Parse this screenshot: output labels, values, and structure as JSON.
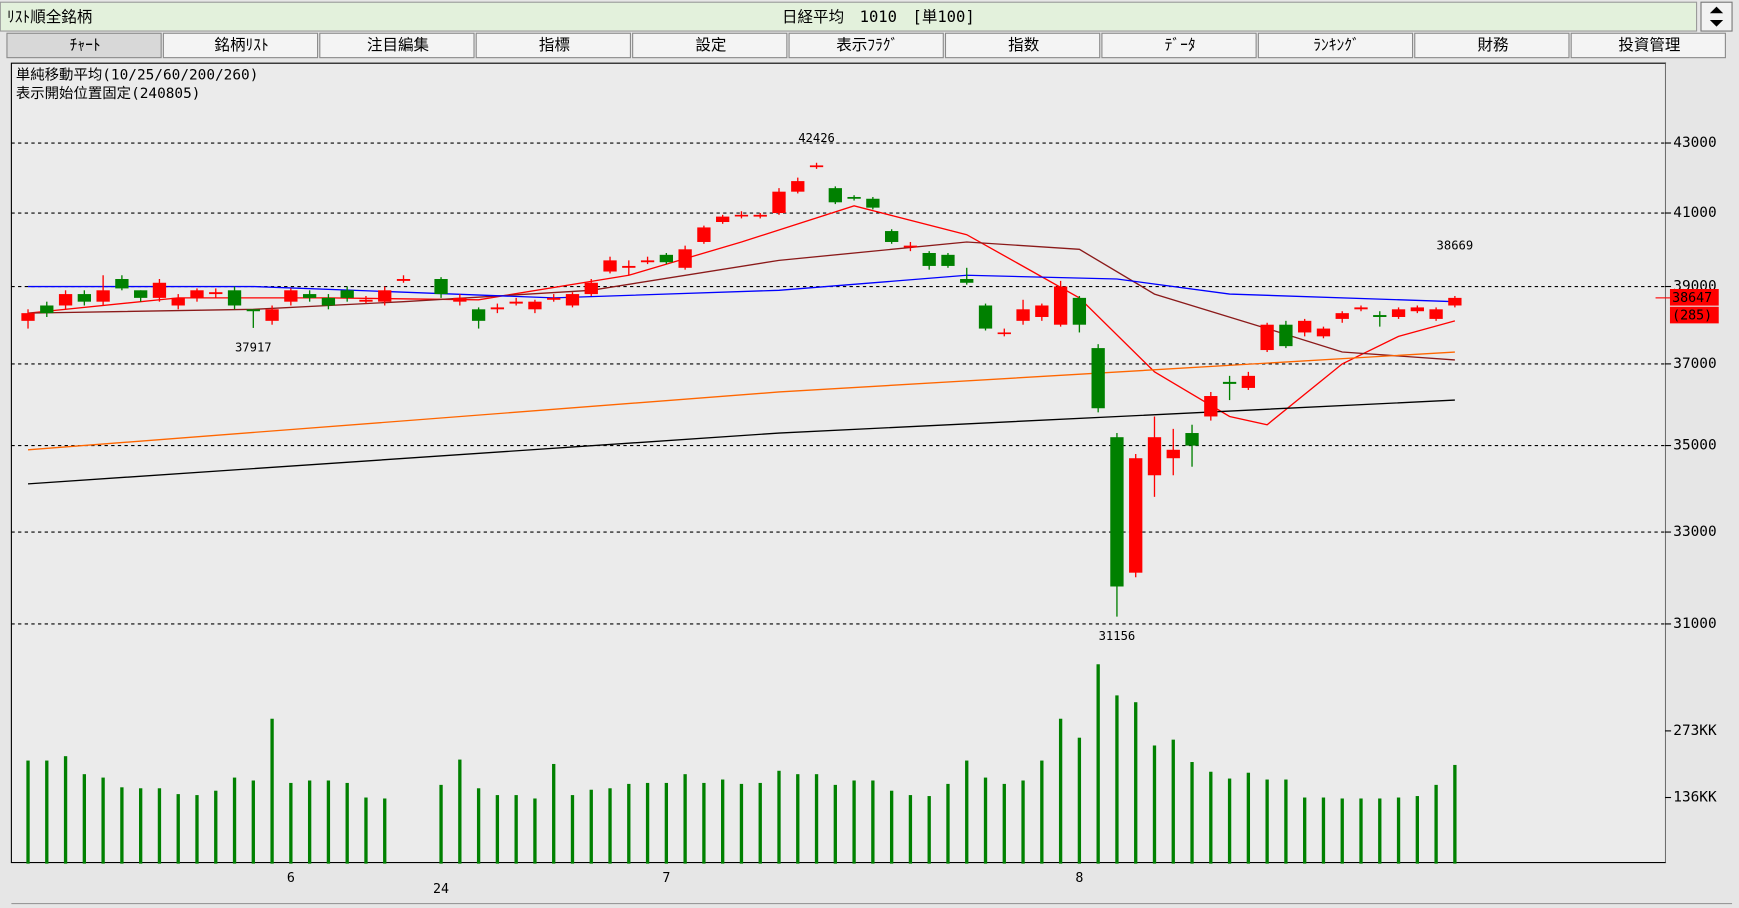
{
  "header": {
    "list_title": "ﾘｽﾄ順全銘柄",
    "instrument": "日経平均　1010　[単100]"
  },
  "tabs": [
    "ﾁｬｰﾄ",
    "銘柄ﾘｽﾄ",
    "注目編集",
    "指標",
    "設定",
    "表示ﾌﾗｸﾞ",
    "指数",
    "ﾃﾞｰﾀ",
    "ﾗﾝｷﾝｸﾞ",
    "財務",
    "投資管理"
  ],
  "chart_data": {
    "type": "candlestick",
    "info_lines": [
      "単純移動平均(10/25/60/200/260)",
      "表示開始位置固定(240805)"
    ],
    "log_scale": true,
    "ylim": [
      30600,
      45400
    ],
    "yticks": [
      31000,
      33000,
      35000,
      37000,
      39000,
      41000,
      43000
    ],
    "grid": true,
    "up_color": "#ff0000",
    "down_color": "#008000",
    "open": [
      38100,
      38500,
      38500,
      38800,
      38600,
      39200,
      38900,
      38700,
      38500,
      38700,
      38800,
      38900,
      38400,
      38100,
      38600,
      38800,
      38700,
      38900,
      38600,
      38600,
      39150,
      null,
      39200,
      38600,
      38400,
      38400,
      38550,
      38400,
      38650,
      38500,
      38800,
      39400,
      39500,
      39650,
      39850,
      39500,
      40200,
      40750,
      40950,
      40900,
      41000,
      41600,
      42300,
      41700,
      41450,
      41400,
      40500,
      40050,
      39900,
      39850,
      39200,
      38500,
      37800,
      38100,
      38200,
      38000,
      38700,
      37400,
      35200,
      32100,
      34300,
      34700,
      35300,
      35700,
      36550,
      36400,
      37350,
      38000,
      37800,
      37700,
      38150,
      38400,
      38250,
      38200,
      38350,
      38150,
      38500
    ],
    "high": [
      38400,
      38600,
      38900,
      38900,
      39300,
      39300,
      38900,
      39200,
      38800,
      38950,
      38950,
      39000,
      38400,
      38500,
      38950,
      38900,
      38800,
      39000,
      38750,
      39000,
      39300,
      null,
      39250,
      38800,
      38450,
      38550,
      38700,
      38650,
      38800,
      38850,
      39200,
      39800,
      39700,
      39800,
      39900,
      40100,
      40650,
      40950,
      41050,
      41000,
      41700,
      42000,
      42426,
      41750,
      41500,
      41450,
      40550,
      40200,
      39950,
      39900,
      39500,
      38550,
      37900,
      38650,
      38550,
      39150,
      38750,
      37500,
      35300,
      34800,
      35700,
      35400,
      35500,
      36300,
      36700,
      36800,
      38050,
      38100,
      38150,
      37950,
      38350,
      38500,
      38350,
      38450,
      38500,
      38450,
      38750
    ],
    "low": [
      37900,
      38200,
      38400,
      38500,
      38500,
      38900,
      38600,
      38600,
      38400,
      38600,
      38700,
      38400,
      37917,
      38000,
      38500,
      38600,
      38400,
      38600,
      38550,
      38500,
      39100,
      null,
      38700,
      38500,
      37900,
      38300,
      38500,
      38300,
      38600,
      38450,
      38750,
      39350,
      39300,
      39600,
      39600,
      39450,
      40150,
      40700,
      40850,
      40850,
      40950,
      41550,
      42250,
      41250,
      41350,
      41100,
      40150,
      39950,
      39450,
      39500,
      39050,
      37850,
      37700,
      38000,
      38100,
      37950,
      37800,
      35800,
      31156,
      32000,
      33800,
      34300,
      34500,
      35600,
      36100,
      36350,
      37300,
      37400,
      37700,
      37650,
      38050,
      38350,
      37950,
      38150,
      38300,
      38100,
      38450
    ],
    "close": [
      38300,
      38300,
      38800,
      38600,
      38900,
      38950,
      38700,
      39100,
      38700,
      38900,
      38850,
      38500,
      38350,
      38400,
      38900,
      38700,
      38500,
      38700,
      38650,
      38900,
      39200,
      null,
      38800,
      38700,
      38100,
      38450,
      38600,
      38600,
      38700,
      38800,
      39100,
      39700,
      39550,
      39700,
      39650,
      40000,
      40600,
      40900,
      40950,
      40950,
      41600,
      41900,
      42350,
      41300,
      41400,
      41150,
      40200,
      40100,
      39550,
      39550,
      39100,
      37900,
      37800,
      38400,
      38500,
      39000,
      38000,
      35900,
      31800,
      34700,
      35200,
      34900,
      35000,
      36200,
      36500,
      36700,
      38000,
      37450,
      38100,
      37900,
      38300,
      38450,
      38200,
      38400,
      38450,
      38400,
      38700
    ],
    "moving_averages": [
      {
        "name": "10",
        "color": "#ff0000",
        "x": [
          0,
          8,
          16,
          24,
          32,
          38,
          44,
          50,
          56,
          60,
          64,
          66,
          70,
          73,
          76
        ],
        "values": [
          38300,
          38700,
          38700,
          38650,
          39300,
          40200,
          41200,
          40400,
          38700,
          36800,
          35700,
          35500,
          37000,
          37700,
          38100
        ]
      },
      {
        "name": "25",
        "color": "#8b1a1a",
        "x": [
          0,
          12,
          20,
          30,
          40,
          50,
          56,
          60,
          66,
          70,
          76
        ],
        "values": [
          38300,
          38400,
          38600,
          38900,
          39700,
          40200,
          40000,
          38800,
          37900,
          37300,
          37100
        ]
      },
      {
        "name": "60",
        "color": "#0000ff",
        "x": [
          0,
          12,
          28,
          40,
          50,
          58,
          64,
          76
        ],
        "values": [
          39000,
          39000,
          38700,
          38900,
          39300,
          39200,
          38800,
          38600
        ]
      },
      {
        "name": "200",
        "color": "#ff6600",
        "x": [
          0,
          40,
          76
        ],
        "values": [
          34900,
          36300,
          37300
        ]
      },
      {
        "name": "260",
        "color": "#000000",
        "x": [
          0,
          40,
          76
        ],
        "values": [
          34100,
          35300,
          36100
        ]
      }
    ],
    "annotations": [
      {
        "label": "42426",
        "index": 42,
        "value": 42426,
        "color": "#ff0000",
        "place": "above"
      },
      {
        "label": "37917",
        "index": 12,
        "value": 37917,
        "color": "#008000",
        "place": "below"
      },
      {
        "label": "31156",
        "index": 58,
        "value": 31156,
        "color": "#008000",
        "place": "below"
      },
      {
        "label": "38669",
        "index": 76,
        "value": 38669,
        "color": "#ff0000",
        "place": "far-above"
      }
    ],
    "last_close_label": "38647",
    "change_label": "(285)",
    "volume": {
      "values": [
        212,
        212,
        221,
        184,
        177,
        157,
        155,
        155,
        143,
        141,
        150,
        177,
        171,
        298,
        166,
        171,
        171,
        166,
        136,
        134,
        null,
        null,
        162,
        214,
        155,
        141,
        141,
        134,
        205,
        141,
        152,
        155,
        164,
        166,
        166,
        184,
        166,
        173,
        164,
        166,
        191,
        184,
        184,
        162,
        171,
        171,
        150,
        141,
        139,
        164,
        212,
        177,
        164,
        171,
        212,
        298,
        259,
        410,
        346,
        332,
        243,
        255,
        209,
        189,
        175,
        187,
        173,
        173,
        136,
        136,
        134,
        134,
        134,
        136,
        139,
        162,
        203
      ],
      "color": "#008000",
      "ylim": [
        0,
        440
      ],
      "yticks": [
        {
          "value": 136,
          "label": "136KK"
        },
        {
          "value": 273,
          "label": "273KK"
        }
      ]
    },
    "x_labels": [
      {
        "label": "6",
        "index": 14
      },
      {
        "label": "24",
        "index": 22
      },
      {
        "label": "7",
        "index": 34
      },
      {
        "label": "8",
        "index": 56
      }
    ]
  }
}
